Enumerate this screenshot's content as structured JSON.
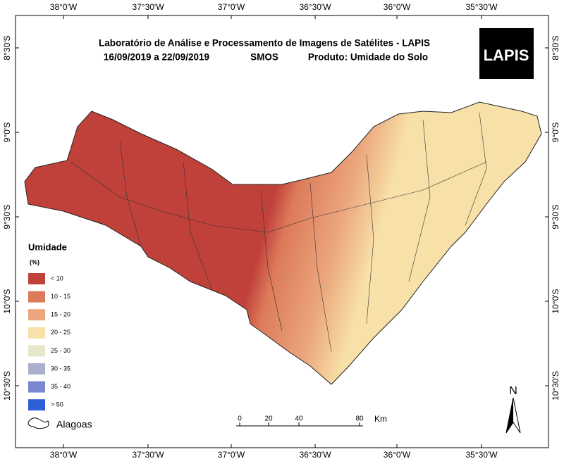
{
  "map": {
    "title": "Laboratório de Análise e Processamento de Imagens de Satélites - LAPIS",
    "period": "16/09/2019  a  22/09/2019",
    "sensor": "SMOS",
    "product": "Produto: Umidade do Solo",
    "logo": "LAPIS"
  },
  "graticule": {
    "longitudes": [
      "38°0'W",
      "37°30'W",
      "37°0'W",
      "36°30'W",
      "36°0'W",
      "35°30'W"
    ],
    "latitudes": [
      "8°30'S",
      "9°0'S",
      "9°30'S",
      "10°0'S",
      "10°30'S"
    ]
  },
  "legend": {
    "title": "Umidade",
    "unit": "(%)",
    "items": [
      {
        "label": "< 10",
        "color": "#c0413a"
      },
      {
        "label": "10 - 15",
        "color": "#dc7a5a"
      },
      {
        "label": "15 - 20",
        "color": "#eba67d"
      },
      {
        "label": "20 - 25",
        "color": "#f8e1a8"
      },
      {
        "label": "25 - 30",
        "color": "#e6e6c8"
      },
      {
        "label": "30 - 35",
        "color": "#a9afcd"
      },
      {
        "label": "35 - 40",
        "color": "#7b88d0"
      },
      {
        "label": "> 50",
        "color": "#2e5fd6"
      }
    ],
    "boundary": "Alagoas"
  },
  "scale_bar": {
    "ticks": [
      "0",
      "20",
      "40",
      "80"
    ],
    "unit": "Km"
  },
  "north": "N"
}
